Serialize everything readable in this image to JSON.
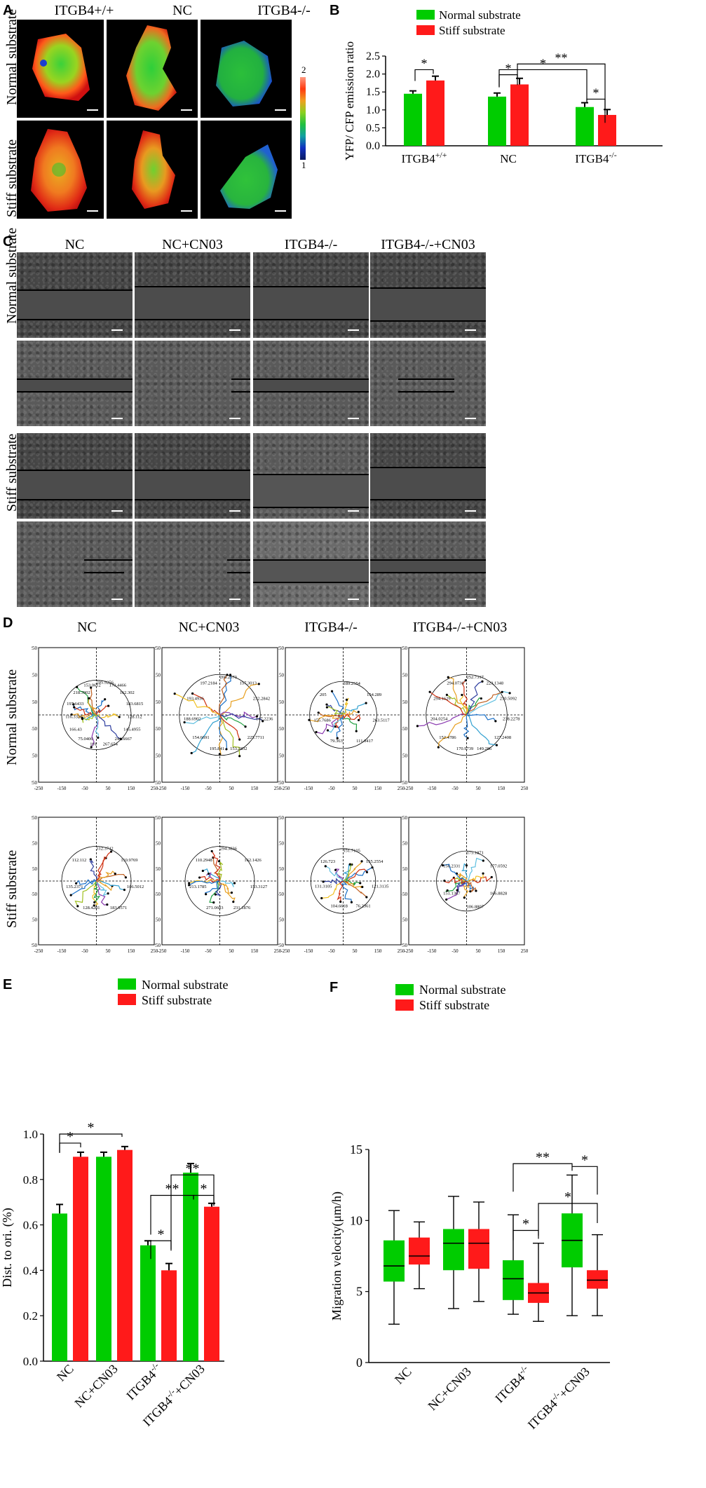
{
  "panel_letters": {
    "a": "A",
    "b": "B",
    "c": "C",
    "d": "D",
    "e": "E",
    "f": "F"
  },
  "panel_a": {
    "columns": [
      "ITGB4+/+",
      "NC",
      "ITGB4-/-"
    ],
    "rows": [
      "Normal substrate",
      "Stiff substrate"
    ],
    "colorbar_max": "2",
    "colorbar_min": "1"
  },
  "panel_c": {
    "columns": [
      "NC",
      "NC+CN03",
      "ITGB4-/-",
      "ITGB4-/-+CN03"
    ],
    "rows": [
      "Normal substrate",
      "Stiff substrate"
    ]
  },
  "panel_d": {
    "columns": [
      "NC",
      "NC+CN03",
      "ITGB4-/-",
      "ITGB4-/-+CN03"
    ],
    "rows": [
      "Normal substrate",
      "Stiff substrate"
    ],
    "axis_ticks": [
      "-250",
      "-150",
      "-50",
      "50",
      "150",
      "250"
    ],
    "sample_endpoint_labels": {
      "nc_normal": [
        "205.9256",
        "170.4466",
        "162.302",
        "183.6815",
        "128.112",
        "145.4955",
        "244.6667",
        "267.654",
        "191",
        "75.0406",
        "166.43",
        "116.3326",
        "197.6433",
        "218.3902",
        "153.0612"
      ],
      "nccn_normal": [
        "266.2573",
        "157.3013",
        "232.2842",
        "147.2236",
        "225.7711",
        "153.2832",
        "195.841",
        "154.6691",
        "188.6902",
        "193.4936",
        "197.2184"
      ],
      "itgb_normal": [
        "189.2554",
        "154.289",
        "263.5117",
        "111.0417",
        "79.363",
        "155.7686",
        "205"
      ],
      "itgbcn_normal": [
        "252.7317",
        "223.1348",
        "230.5092",
        "238.2278",
        "127.2408",
        "149.286",
        "170.9739",
        "152.4786",
        "204.0254",
        "294.1629",
        "294.0736"
      ],
      "nc_stiff": [
        "112.3742",
        "110.9769",
        "106.5012",
        "183.9571",
        "128.4281",
        "135.2371",
        "112.112"
      ],
      "nccn_stiff": [
        "294.3836",
        "162.1426",
        "153.3127",
        "231.1876",
        "271.0603",
        "213.1785",
        "110.2948"
      ],
      "itgb_stiff": [
        "151.7105",
        "155.2554",
        "121.3135",
        "76.2361",
        "104.6618",
        "131.3105",
        "126.723"
      ],
      "itgbcn_stiff": [
        "175.1871",
        "177.0592",
        "166.8828",
        "106.8807",
        "151.1387",
        "156.2331"
      ]
    }
  },
  "panel_b": {
    "chart_data": {
      "type": "bar",
      "categories": [
        "ITGB4+/+",
        "NC",
        "ITGB4-/-"
      ],
      "series": [
        {
          "name": "Normal substrate",
          "values": [
            1.45,
            1.37,
            1.08
          ],
          "errors": [
            0.08,
            0.1,
            0.12
          ],
          "color": "#00cc00"
        },
        {
          "name": "Stiff substrate",
          "values": [
            1.82,
            1.71,
            0.86
          ],
          "errors": [
            0.12,
            0.17,
            0.15
          ],
          "color": "#ff1a1a"
        }
      ],
      "ylabel": "YFP/ CFP emission ratio",
      "ylim": [
        0,
        2.5
      ],
      "yticks": [
        "0.0",
        "0.5",
        "1.0",
        "1.5",
        "2.0",
        "2.5"
      ],
      "significance": [
        "*",
        "*",
        "*",
        "**",
        "*"
      ]
    }
  },
  "panel_e": {
    "chart_data": {
      "type": "bar",
      "categories": [
        "NC",
        "NC+CN03",
        "ITGB4-/-",
        "ITGB4-/-+CN03"
      ],
      "series": [
        {
          "name": "Normal substrate",
          "values": [
            0.65,
            0.9,
            0.51,
            0.83
          ],
          "errors": [
            0.04,
            0.02,
            0.02,
            0.04
          ],
          "color": "#00cc00"
        },
        {
          "name": "Stiff substrate",
          "values": [
            0.9,
            0.93,
            0.4,
            0.68
          ],
          "errors": [
            0.02,
            0.015,
            0.03,
            0.015
          ],
          "color": "#ff1a1a"
        }
      ],
      "ylabel": "Dist. to ori. (%)",
      "ylim": [
        0,
        1.0
      ],
      "yticks": [
        "0.0",
        "0.2",
        "0.4",
        "0.6",
        "0.8",
        "1.0"
      ],
      "significance": [
        "*",
        "*",
        "*",
        "**",
        "**",
        "*"
      ]
    }
  },
  "panel_f": {
    "chart_data": {
      "type": "box",
      "categories": [
        "NC",
        "NC+CN03",
        "ITGB4-/-",
        "ITGB4-/-+CN03"
      ],
      "series": [
        {
          "name": "Normal substrate",
          "color": "#00cc00",
          "boxes": [
            {
              "min": 2.7,
              "q1": 5.7,
              "median": 6.8,
              "q3": 8.6,
              "max": 10.7
            },
            {
              "min": 3.8,
              "q1": 6.5,
              "median": 8.4,
              "q3": 9.4,
              "max": 11.7
            },
            {
              "min": 3.4,
              "q1": 4.4,
              "median": 5.9,
              "q3": 7.2,
              "max": 10.4
            },
            {
              "min": 3.3,
              "q1": 6.7,
              "median": 8.6,
              "q3": 10.5,
              "max": 13.2
            }
          ]
        },
        {
          "name": "Stiff substrate",
          "color": "#ff1a1a",
          "boxes": [
            {
              "min": 5.2,
              "q1": 6.9,
              "median": 7.5,
              "q3": 8.8,
              "max": 9.9
            },
            {
              "min": 4.3,
              "q1": 6.6,
              "median": 8.4,
              "q3": 9.4,
              "max": 11.3
            },
            {
              "min": 2.9,
              "q1": 4.2,
              "median": 4.9,
              "q3": 5.6,
              "max": 8.4
            },
            {
              "min": 3.3,
              "q1": 5.2,
              "median": 5.8,
              "q3": 6.5,
              "max": 9.0
            }
          ]
        }
      ],
      "ylabel": "Migration velocity(μm/h)",
      "ylim": [
        0,
        15
      ],
      "yticks": [
        "0",
        "5",
        "10",
        "15"
      ],
      "significance": [
        "*",
        "**",
        "*",
        "*"
      ]
    }
  }
}
